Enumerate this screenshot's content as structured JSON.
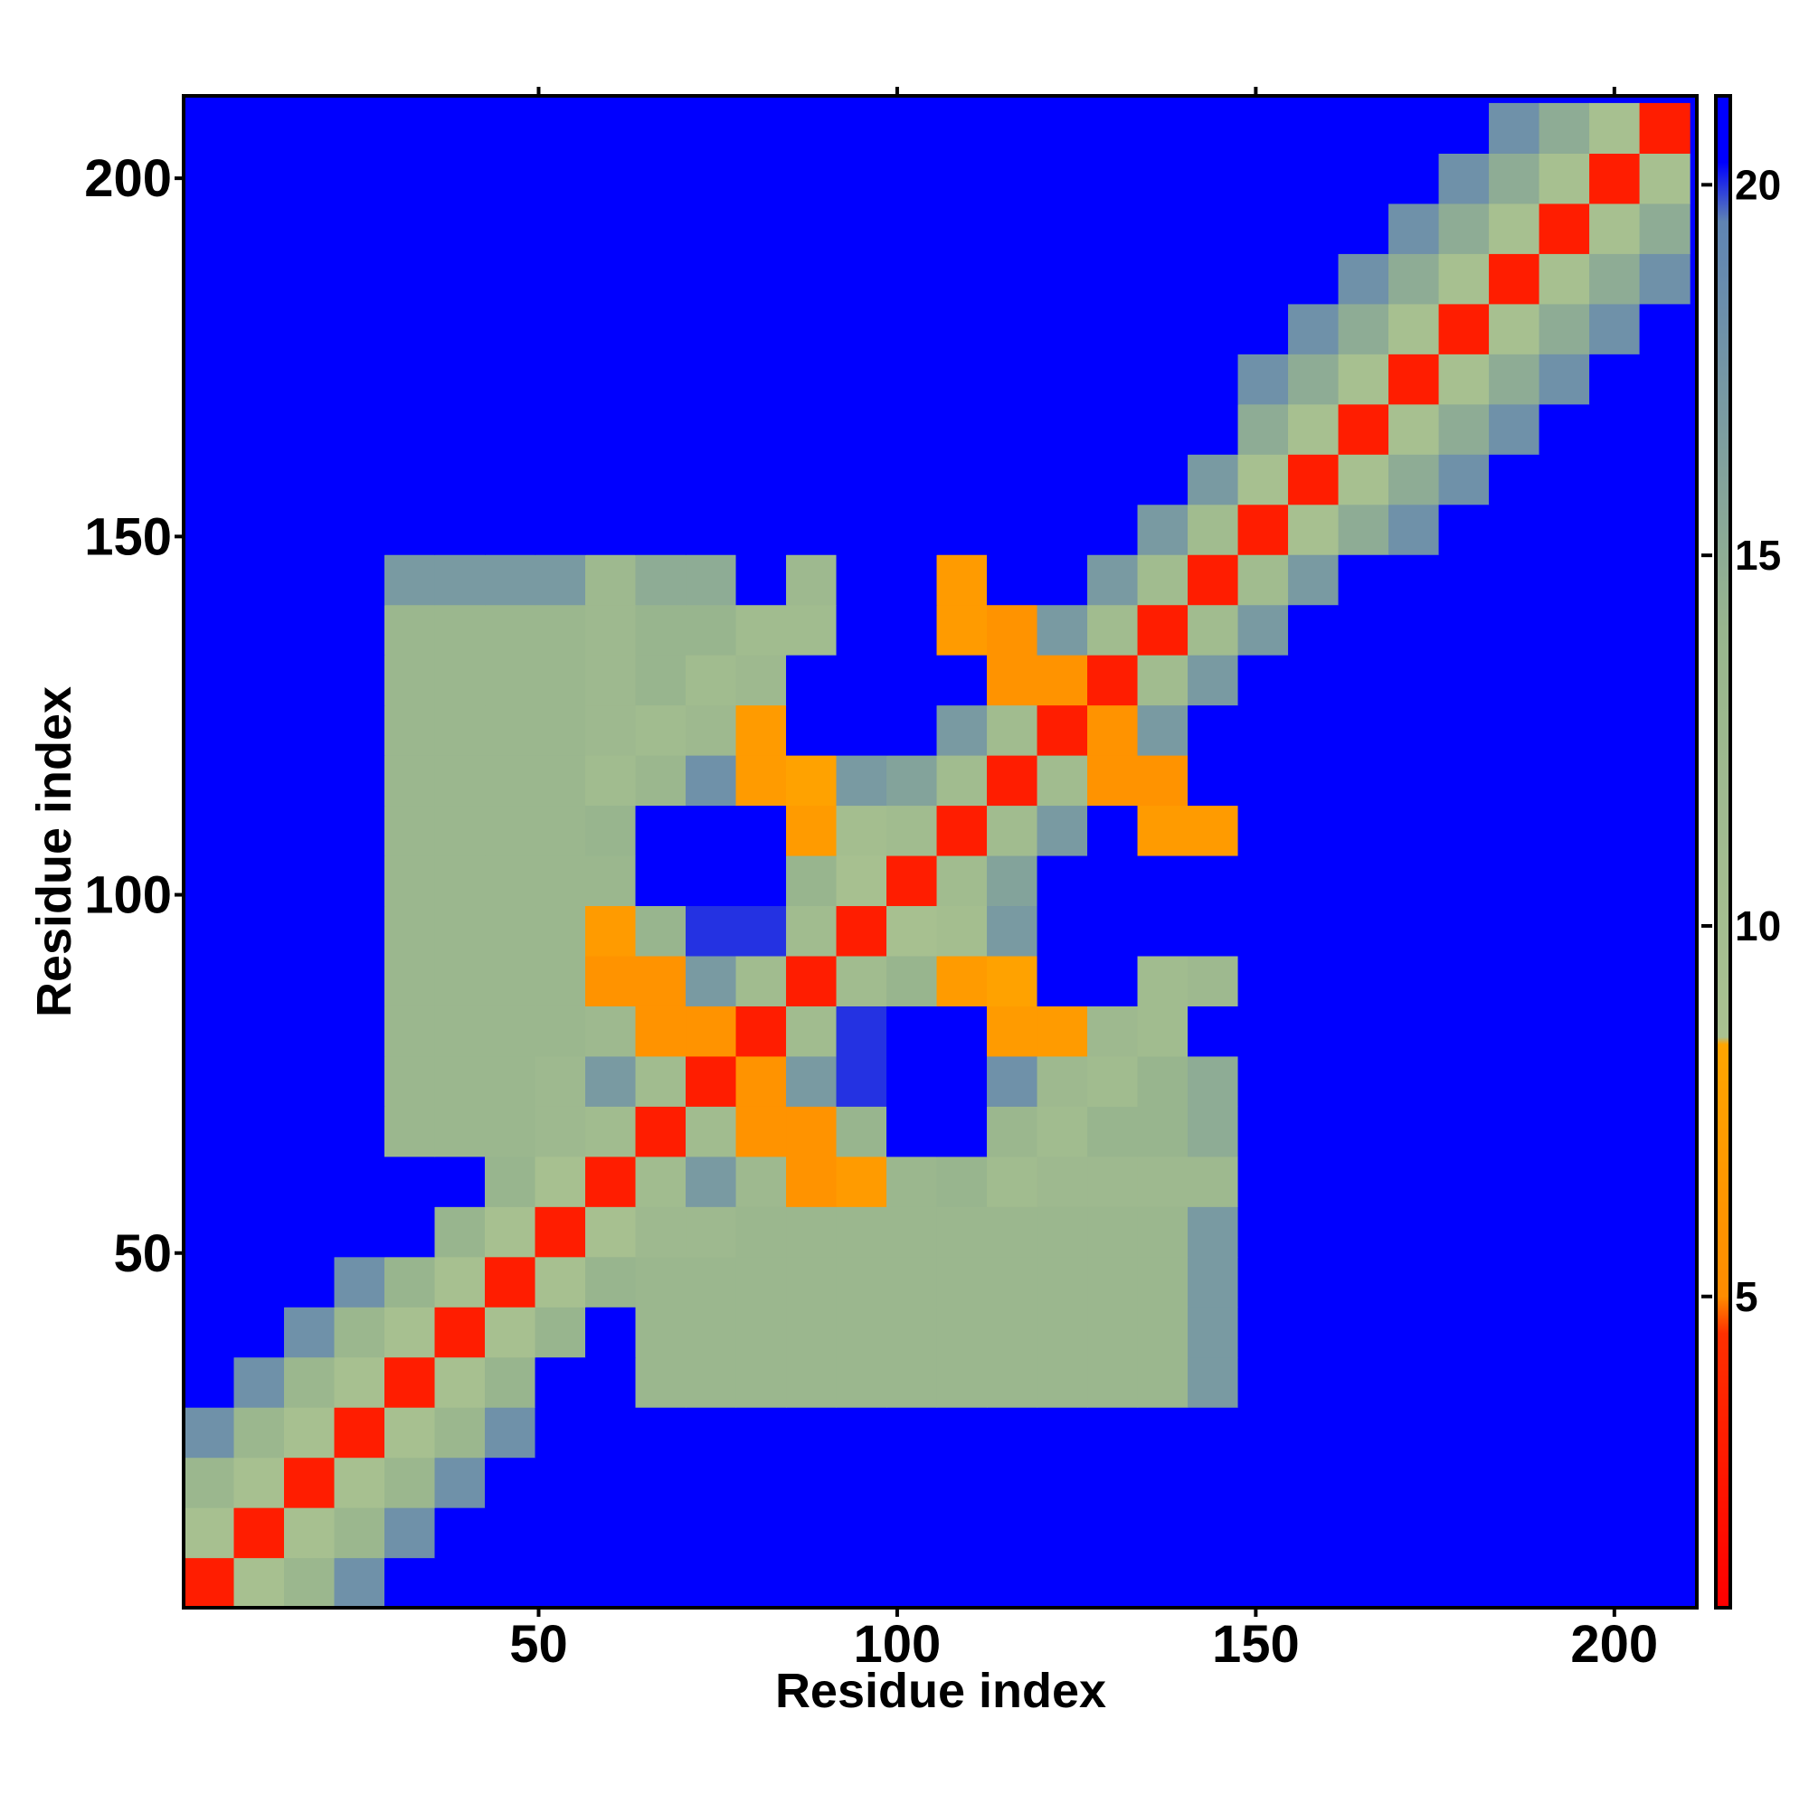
{
  "chart_data": {
    "type": "heatmap",
    "xlabel": "Residue index",
    "ylabel": "Residue index",
    "xlim": [
      0.5,
      211.5
    ],
    "ylim": [
      0.5,
      211.5
    ],
    "xticks": [
      50,
      100,
      150,
      200
    ],
    "yticks": [
      50,
      100,
      150,
      200
    ],
    "zlim": [
      0.8,
      21.2
    ],
    "zticks": [
      5,
      10,
      15,
      20
    ],
    "colorscale": [
      [
        0.8,
        "#ff0000"
      ],
      [
        4.5,
        "#ff3000"
      ],
      [
        5,
        "#ff8c00"
      ],
      [
        8.4,
        "#ffa500"
      ],
      [
        8.5,
        "#a9c190"
      ],
      [
        14,
        "#98b58e"
      ],
      [
        19.5,
        "#5f84b3"
      ],
      [
        20.3,
        "#0000ff"
      ],
      [
        21.2,
        "#0000ff"
      ]
    ],
    "x": [
      4,
      11,
      18,
      25,
      32,
      39,
      46,
      53,
      60,
      67,
      74,
      81,
      88,
      95,
      102,
      109,
      116,
      123,
      130,
      137,
      144,
      151,
      158,
      165,
      172,
      179,
      186,
      193,
      200,
      207
    ],
    "y": [
      4,
      11,
      18,
      25,
      32,
      39,
      46,
      53,
      60,
      67,
      74,
      81,
      88,
      95,
      102,
      109,
      116,
      123,
      130,
      137,
      144,
      151,
      158,
      165,
      172,
      179,
      186,
      193,
      200,
      207
    ],
    "z": [
      [
        3,
        9,
        13,
        18,
        21,
        21,
        21,
        21,
        21,
        21,
        21,
        21,
        21,
        21,
        21,
        21,
        21,
        21,
        21,
        21,
        21,
        21,
        21,
        21,
        21,
        21,
        21,
        21,
        21,
        21
      ],
      [
        9,
        3,
        9,
        13,
        18,
        21,
        21,
        21,
        21,
        21,
        21,
        21,
        21,
        21,
        21,
        21,
        21,
        21,
        21,
        21,
        21,
        21,
        21,
        21,
        21,
        21,
        21,
        21,
        21,
        21
      ],
      [
        13,
        9,
        3,
        9,
        13,
        18,
        21,
        21,
        21,
        21,
        21,
        21,
        21,
        21,
        21,
        21,
        21,
        21,
        21,
        21,
        21,
        21,
        21,
        21,
        21,
        21,
        21,
        21,
        21,
        21
      ],
      [
        18,
        13,
        9,
        3,
        9,
        13,
        18,
        21,
        21,
        21,
        21,
        21,
        21,
        21,
        21,
        21,
        21,
        21,
        21,
        21,
        21,
        21,
        21,
        21,
        21,
        21,
        21,
        21,
        21,
        21
      ],
      [
        21,
        18,
        13,
        9,
        3,
        9,
        14,
        21,
        21,
        13,
        13,
        13,
        13,
        13,
        13,
        13,
        13,
        13,
        13,
        13,
        17,
        21,
        21,
        21,
        21,
        21,
        21,
        21,
        21,
        21
      ],
      [
        21,
        21,
        18,
        13,
        9,
        3,
        9,
        14,
        21,
        13,
        13,
        13,
        13,
        13,
        13,
        13,
        13,
        13,
        13,
        13,
        17,
        21,
        21,
        21,
        21,
        21,
        21,
        21,
        21,
        21
      ],
      [
        21,
        21,
        21,
        18,
        14,
        9,
        3,
        9,
        14,
        13,
        13,
        13,
        13,
        13,
        13,
        13,
        13,
        13,
        13,
        13,
        17,
        21,
        21,
        21,
        21,
        21,
        21,
        21,
        21,
        21
      ],
      [
        21,
        21,
        21,
        21,
        21,
        14,
        9,
        3,
        9,
        12,
        12,
        13,
        13,
        13,
        13,
        13,
        13,
        13,
        13,
        13,
        17,
        21,
        21,
        21,
        21,
        21,
        21,
        21,
        21,
        21
      ],
      [
        21,
        21,
        21,
        21,
        21,
        21,
        14,
        9,
        3,
        11,
        17,
        12,
        6,
        7,
        13,
        14,
        11,
        12,
        12,
        12,
        12,
        21,
        21,
        21,
        21,
        21,
        21,
        21,
        21,
        21
      ],
      [
        21,
        21,
        21,
        21,
        13,
        13,
        13,
        12,
        11,
        3,
        11,
        6,
        6,
        14,
        21,
        21,
        13,
        11,
        14,
        14,
        15,
        21,
        21,
        21,
        21,
        21,
        21,
        21,
        21,
        21
      ],
      [
        21,
        21,
        21,
        21,
        13,
        13,
        13,
        12,
        17,
        11,
        3,
        6,
        17,
        20,
        21,
        21,
        18,
        12,
        11,
        14,
        15,
        21,
        21,
        21,
        21,
        21,
        21,
        21,
        21,
        21
      ],
      [
        21,
        21,
        21,
        21,
        13,
        13,
        13,
        13,
        12,
        6,
        6,
        3,
        11,
        20,
        21,
        21,
        7,
        7,
        12,
        11,
        21,
        21,
        21,
        21,
        21,
        21,
        21,
        21,
        21,
        21
      ],
      [
        21,
        21,
        21,
        21,
        13,
        13,
        13,
        13,
        6,
        6,
        17,
        11,
        3,
        11,
        14,
        7,
        8,
        21,
        21,
        11,
        12,
        21,
        21,
        21,
        21,
        21,
        21,
        21,
        21,
        21
      ],
      [
        21,
        21,
        21,
        21,
        13,
        13,
        13,
        13,
        7,
        14,
        20,
        20,
        11,
        3,
        9,
        10,
        17,
        21,
        21,
        21,
        21,
        21,
        21,
        21,
        21,
        21,
        21,
        21,
        21,
        21
      ],
      [
        21,
        21,
        21,
        21,
        13,
        13,
        13,
        13,
        13,
        21,
        21,
        21,
        14,
        9,
        3,
        11,
        16,
        21,
        21,
        21,
        21,
        21,
        21,
        21,
        21,
        21,
        21,
        21,
        21,
        21
      ],
      [
        21,
        21,
        21,
        21,
        13,
        13,
        13,
        13,
        14,
        21,
        21,
        21,
        7,
        10,
        11,
        3,
        11,
        17,
        21,
        7,
        7,
        21,
        21,
        21,
        21,
        21,
        21,
        21,
        21,
        21
      ],
      [
        21,
        21,
        21,
        21,
        13,
        13,
        13,
        13,
        11,
        13,
        18,
        7,
        8,
        17,
        16,
        11,
        3,
        11,
        6,
        6,
        21,
        21,
        21,
        21,
        21,
        21,
        21,
        21,
        21,
        21
      ],
      [
        21,
        21,
        21,
        21,
        13,
        13,
        13,
        13,
        12,
        11,
        12,
        7,
        21,
        21,
        21,
        17,
        11,
        3,
        6,
        17,
        21,
        21,
        21,
        21,
        21,
        21,
        21,
        21,
        21,
        21
      ],
      [
        21,
        21,
        21,
        21,
        13,
        13,
        13,
        13,
        12,
        14,
        11,
        12,
        21,
        21,
        21,
        21,
        6,
        6,
        3,
        11,
        17,
        21,
        21,
        21,
        21,
        21,
        21,
        21,
        21,
        21
      ],
      [
        21,
        21,
        21,
        21,
        13,
        13,
        13,
        13,
        12,
        14,
        14,
        11,
        11,
        21,
        21,
        7,
        6,
        17,
        11,
        3,
        11,
        17,
        21,
        21,
        21,
        21,
        21,
        21,
        21,
        21
      ],
      [
        21,
        21,
        21,
        21,
        17,
        17,
        17,
        17,
        12,
        15,
        15,
        21,
        12,
        21,
        21,
        7,
        21,
        21,
        17,
        11,
        3,
        11,
        17,
        21,
        21,
        21,
        21,
        21,
        21,
        21
      ],
      [
        21,
        21,
        21,
        21,
        21,
        21,
        21,
        21,
        21,
        21,
        21,
        21,
        21,
        21,
        21,
        21,
        21,
        21,
        21,
        17,
        11,
        3,
        9,
        15,
        18,
        21,
        21,
        21,
        21,
        21
      ],
      [
        21,
        21,
        21,
        21,
        21,
        21,
        21,
        21,
        21,
        21,
        21,
        21,
        21,
        21,
        21,
        21,
        21,
        21,
        21,
        21,
        17,
        9,
        3,
        9,
        15,
        18,
        21,
        21,
        21,
        21
      ],
      [
        21,
        21,
        21,
        21,
        21,
        21,
        21,
        21,
        21,
        21,
        21,
        21,
        21,
        21,
        21,
        21,
        21,
        21,
        21,
        21,
        21,
        15,
        9,
        3,
        9,
        15,
        18,
        21,
        21,
        21
      ],
      [
        21,
        21,
        21,
        21,
        21,
        21,
        21,
        21,
        21,
        21,
        21,
        21,
        21,
        21,
        21,
        21,
        21,
        21,
        21,
        21,
        21,
        18,
        15,
        9,
        3,
        9,
        15,
        18,
        21,
        21
      ],
      [
        21,
        21,
        21,
        21,
        21,
        21,
        21,
        21,
        21,
        21,
        21,
        21,
        21,
        21,
        21,
        21,
        21,
        21,
        21,
        21,
        21,
        21,
        18,
        15,
        9,
        3,
        9,
        15,
        18,
        21
      ],
      [
        21,
        21,
        21,
        21,
        21,
        21,
        21,
        21,
        21,
        21,
        21,
        21,
        21,
        21,
        21,
        21,
        21,
        21,
        21,
        21,
        21,
        21,
        21,
        18,
        15,
        9,
        3,
        9,
        15,
        18
      ],
      [
        21,
        21,
        21,
        21,
        21,
        21,
        21,
        21,
        21,
        21,
        21,
        21,
        21,
        21,
        21,
        21,
        21,
        21,
        21,
        21,
        21,
        21,
        21,
        21,
        18,
        15,
        9,
        3,
        9,
        15
      ],
      [
        21,
        21,
        21,
        21,
        21,
        21,
        21,
        21,
        21,
        21,
        21,
        21,
        21,
        21,
        21,
        21,
        21,
        21,
        21,
        21,
        21,
        21,
        21,
        21,
        21,
        18,
        15,
        9,
        3,
        9
      ],
      [
        21,
        21,
        21,
        21,
        21,
        21,
        21,
        21,
        21,
        21,
        21,
        21,
        21,
        21,
        21,
        21,
        21,
        21,
        21,
        21,
        21,
        21,
        21,
        21,
        21,
        21,
        18,
        15,
        9,
        3
      ]
    ]
  }
}
